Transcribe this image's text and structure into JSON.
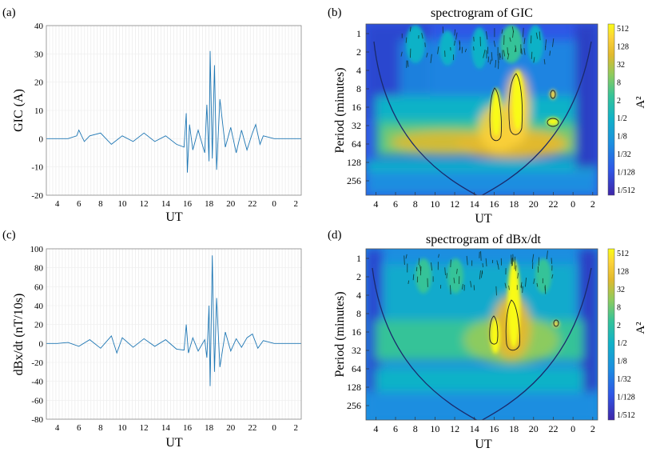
{
  "chart_data": [
    {
      "id": "a",
      "panel_label": "(a)",
      "type": "line",
      "title": "",
      "xlabel": "UT",
      "ylabel": "GIC (A)",
      "ylim": [
        -20,
        40
      ],
      "yticks": [
        -20,
        -10,
        0,
        10,
        20,
        30,
        40
      ],
      "xticks": [
        "4",
        "6",
        "8",
        "10",
        "12",
        "14",
        "16",
        "18",
        "20",
        "22",
        "0",
        "2"
      ],
      "grid": true,
      "color": "#1f77b4",
      "series": [
        {
          "x": [
            3.0,
            4.0,
            5.0,
            5.8,
            6.0,
            6.5,
            7.0,
            8.0,
            9.0,
            10.0,
            11.0,
            12.0,
            13.0,
            14.0,
            15.0,
            15.7,
            15.9,
            16.0,
            16.2,
            16.5,
            17.0,
            17.6,
            17.8,
            18.0,
            18.1,
            18.3,
            18.5,
            18.7,
            19.0,
            19.5,
            20.0,
            20.5,
            21.0,
            21.5,
            22.0,
            22.3,
            22.7,
            23.0,
            24.0,
            25.0,
            26.5
          ],
          "y": [
            0,
            0,
            0,
            1,
            3,
            -1,
            1,
            2,
            -2,
            1,
            -1,
            2,
            -1,
            1,
            -2,
            -3,
            9,
            -12,
            5,
            -4,
            3,
            -5,
            12,
            -8,
            31,
            -7,
            26,
            -11,
            14,
            -3,
            4,
            -5,
            3,
            -4,
            2,
            5,
            -2,
            1,
            0,
            0,
            0
          ]
        }
      ]
    },
    {
      "id": "b",
      "panel_label": "(b)",
      "type": "heatmap",
      "title": "spectrogram of GIC",
      "xlabel": "UT",
      "ylabel": "Period (minutes)",
      "xticks": [
        "4",
        "6",
        "8",
        "10",
        "12",
        "14",
        "16",
        "18",
        "20",
        "22",
        "0",
        "2"
      ],
      "yticks": [
        "1",
        "2",
        "4",
        "8",
        "16",
        "32",
        "64",
        "128",
        "256"
      ],
      "colorbar_label": "A²",
      "colorbar_ticks": [
        "512",
        "128",
        "32",
        "8",
        "2",
        "1/2",
        "1/8",
        "1/32",
        "1/128",
        "1/512"
      ],
      "colormap": [
        "#3e26a8",
        "#2f57e6",
        "#1c8ee0",
        "#11b2c7",
        "#35c398",
        "#8ccb5f",
        "#e1b92d",
        "#fcd23a",
        "#f9fb15"
      ]
    },
    {
      "id": "c",
      "panel_label": "(c)",
      "type": "line",
      "title": "",
      "xlabel": "UT",
      "ylabel": "dBx/dt (nT/10s)",
      "ylim": [
        -80,
        100
      ],
      "yticks": [
        -80,
        -60,
        -40,
        -20,
        0,
        20,
        40,
        60,
        80,
        100
      ],
      "xticks": [
        "4",
        "6",
        "8",
        "10",
        "12",
        "14",
        "16",
        "18",
        "20",
        "22",
        "0",
        "2"
      ],
      "grid": true,
      "color": "#1f77b4",
      "series": [
        {
          "x": [
            3.0,
            4.0,
            5.0,
            6.0,
            7.0,
            8.0,
            9.0,
            9.5,
            10.0,
            11.0,
            12.0,
            13.0,
            14.0,
            15.0,
            15.7,
            15.9,
            16.1,
            16.5,
            17.0,
            17.6,
            17.8,
            18.0,
            18.1,
            18.3,
            18.5,
            18.7,
            19.0,
            19.5,
            20.0,
            20.5,
            21.0,
            21.5,
            22.0,
            22.5,
            23.0,
            24.0,
            25.0,
            26.5
          ],
          "y": [
            0,
            0,
            1,
            -3,
            4,
            -5,
            8,
            -10,
            6,
            -4,
            5,
            -3,
            4,
            -6,
            -7,
            20,
            -10,
            6,
            -8,
            4,
            -15,
            40,
            -45,
            93,
            -30,
            48,
            -25,
            12,
            -8,
            5,
            -4,
            6,
            10,
            -5,
            3,
            0,
            0,
            0
          ]
        }
      ]
    },
    {
      "id": "d",
      "panel_label": "(d)",
      "type": "heatmap",
      "title": "spectrogram of dBx/dt",
      "xlabel": "UT",
      "ylabel": "Period (minutes)",
      "xticks": [
        "4",
        "6",
        "8",
        "10",
        "12",
        "14",
        "16",
        "18",
        "20",
        "22",
        "0",
        "2"
      ],
      "yticks": [
        "1",
        "2",
        "4",
        "8",
        "16",
        "32",
        "64",
        "128",
        "256"
      ],
      "colorbar_label": "A²",
      "colorbar_ticks": [
        "512",
        "128",
        "32",
        "8",
        "2",
        "1/2",
        "1/8",
        "1/32",
        "1/128",
        "1/512"
      ],
      "colormap": [
        "#3e26a8",
        "#2f57e6",
        "#1c8ee0",
        "#11b2c7",
        "#35c398",
        "#8ccb5f",
        "#e1b92d",
        "#fcd23a",
        "#f9fb15"
      ]
    }
  ]
}
